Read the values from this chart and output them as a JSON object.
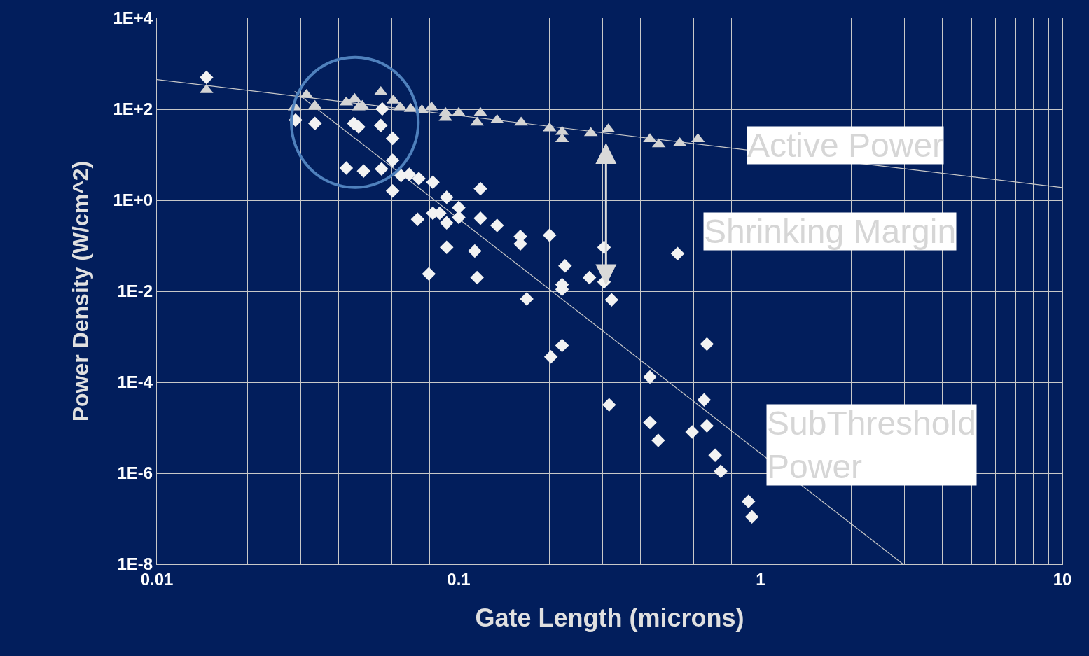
{
  "chart_data": {
    "type": "scatter",
    "xlabel": "Gate Length (microns)",
    "ylabel": "Power Density (W/cm^2)",
    "log": "xy",
    "grid": true,
    "xlim": [
      0.01,
      10
    ],
    "xticks": [
      0.01,
      0.1,
      1,
      10
    ],
    "ylim": [
      1e-08,
      10000.0
    ],
    "yticks": [
      {
        "value": 10000.0,
        "label": "1E+4"
      },
      {
        "value": 100.0,
        "label": "1E+2"
      },
      {
        "value": 1,
        "label": "1E+0"
      },
      {
        "value": 0.01,
        "label": "1E-2"
      },
      {
        "value": 0.0001,
        "label": "1E-4"
      },
      {
        "value": 1e-06,
        "label": "1E-6"
      },
      {
        "value": 1e-08,
        "label": "1E-8"
      }
    ],
    "series": [
      {
        "type": "line",
        "color": "#c8c8c8",
        "x": [
          0.01,
          10
        ],
        "values": [
          450,
          1.9
        ]
      },
      {
        "type": "line",
        "color": "#c8c8c8",
        "x": [
          0.0286,
          2.97
        ],
        "values": [
          247,
          1e-08
        ]
      },
      {
        "marker": "diamond",
        "color": "#f2f2f2",
        "x": [
          0.0146,
          0.0288,
          0.0334,
          0.0424,
          0.0449,
          0.0466,
          0.0484,
          0.0552,
          0.0558,
          0.0555,
          0.0604,
          0.0604,
          0.0604,
          0.0644,
          0.0686,
          0.0738,
          0.0821,
          0.0796,
          0.0731,
          0.0821,
          0.0865,
          0.0912,
          0.0912,
          0.0912,
          0.1,
          0.1,
          0.113,
          0.115,
          0.118,
          0.118,
          0.134,
          0.16,
          0.16,
          0.168,
          0.2,
          0.202,
          0.22,
          0.22,
          0.22,
          0.225,
          0.271,
          0.303,
          0.303,
          0.321,
          0.315,
          0.43,
          0.43,
          0.458,
          0.531,
          0.593,
          0.664,
          0.65,
          0.664,
          0.707,
          0.738,
          0.912,
          0.936
        ],
        "values": [
          500,
          58,
          49,
          5.1,
          49,
          41,
          4.4,
          44,
          102,
          4.9,
          23,
          7.5,
          1.6,
          3.5,
          3.7,
          3.0,
          2.5,
          0.024,
          0.38,
          0.52,
          0.52,
          0.32,
          1.16,
          0.092,
          0.69,
          0.42,
          0.077,
          0.02,
          1.8,
          0.4,
          0.28,
          0.16,
          0.11,
          0.0068,
          0.17,
          0.00036,
          0.00064,
          0.014,
          0.011,
          0.036,
          0.02,
          0.092,
          0.016,
          0.0065,
          3.2e-05,
          0.00013,
          1.3e-05,
          5.3e-06,
          0.067,
          8.1e-06,
          0.00069,
          4.1e-05,
          1.1e-05,
          2.5e-06,
          1.1e-06,
          2.4e-07,
          1.1e-07
        ]
      },
      {
        "marker": "triangle",
        "color": "#d4d4d4",
        "x": [
          0.0146,
          0.0313,
          0.0286,
          0.0334,
          0.0424,
          0.0452,
          0.0479,
          0.0466,
          0.0552,
          0.0607,
          0.064,
          0.0693,
          0.0755,
          0.0813,
          0.0904,
          0.0904,
          0.1,
          0.118,
          0.115,
          0.134,
          0.161,
          0.2,
          0.22,
          0.22,
          0.274,
          0.313,
          0.43,
          0.46,
          0.54,
          0.62
        ],
        "values": [
          265,
          207,
          110,
          118,
          141,
          168,
          118,
          110,
          238,
          156,
          110,
          102,
          95,
          110,
          83,
          65,
          83,
          83,
          51,
          58,
          51,
          38,
          32,
          22,
          30,
          36,
          22,
          17,
          18,
          22
        ]
      }
    ],
    "annotations": [
      "Active Power",
      "Shrinking Margin",
      "SubThreshold\nPower"
    ]
  }
}
